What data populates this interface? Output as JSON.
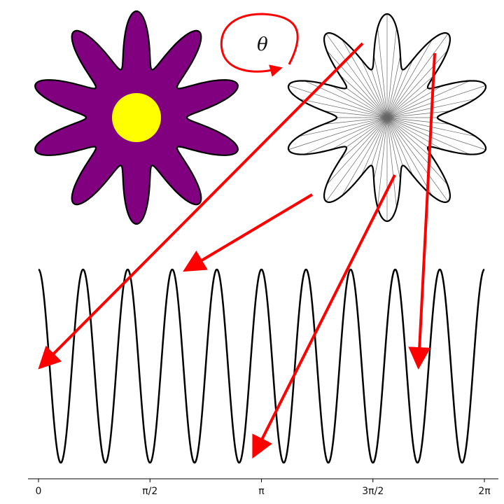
{
  "labels": {
    "theta": "θ"
  },
  "axis": {
    "ticks": [
      "0",
      "π/2",
      "π",
      "3π/2",
      "2π"
    ]
  },
  "colors": {
    "petal_fill": "#800080",
    "center_fill": "#ffff00",
    "outline": "#000000",
    "arrow": "#ff0000",
    "ray": "#666666"
  },
  "flower": {
    "petals": 10
  },
  "chart_data": {
    "type": "line",
    "series": [
      {
        "formula": "cos(10·θ)"
      }
    ],
    "xlim": [
      0,
      6.2832
    ],
    "ylim": [
      -1,
      1
    ],
    "xticks": [
      "0",
      "π/2",
      "π",
      "3π/2",
      "2π"
    ]
  }
}
